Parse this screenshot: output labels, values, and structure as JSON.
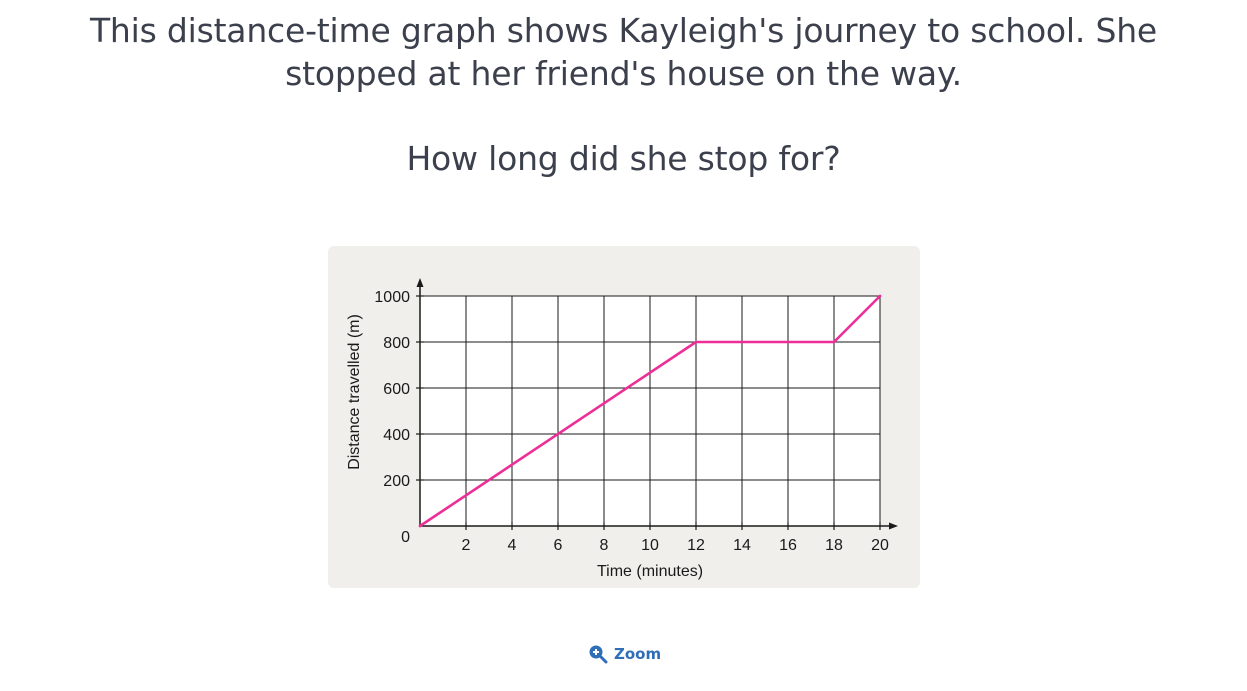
{
  "question": {
    "line1": "This distance-time graph shows Kayleigh's journey to school. She stopped at her friend's house on the way.",
    "line2": "How long did she stop for?"
  },
  "zoom": {
    "label": "Zoom",
    "icon": "zoom-in-icon"
  },
  "colors": {
    "line": "#ee2e98",
    "grid": "#1a1a1a",
    "card": "#f1efec",
    "accent": "#2f6fb8"
  },
  "chart_data": {
    "type": "line",
    "title": "",
    "xlabel": "Time (minutes)",
    "ylabel": "Distance travelled (m)",
    "xlim": [
      0,
      20
    ],
    "ylim": [
      0,
      1000
    ],
    "x_ticks": [
      2,
      4,
      6,
      8,
      10,
      12,
      14,
      16,
      18,
      20
    ],
    "y_ticks": [
      200,
      400,
      600,
      800,
      1000
    ],
    "origin_label": "0",
    "grid": true,
    "series": [
      {
        "x": [
          0,
          12,
          18,
          20
        ],
        "y": [
          0,
          800,
          800,
          1000
        ]
      }
    ]
  }
}
